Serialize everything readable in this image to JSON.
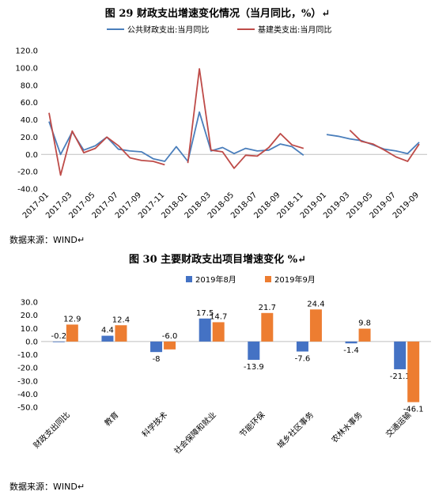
{
  "chart1": {
    "title": "图 29  财政支出增速变化情况（当月同比，%）↵",
    "source": "数据来源：WIND↵",
    "chart_data": {
      "type": "line",
      "legend_position": "top",
      "ylim": [
        -40,
        120
      ],
      "yticks": [
        "-40.0",
        "-20.0",
        "0.0",
        "20.0",
        "40.0",
        "60.0",
        "80.0",
        "100.0",
        "120.0"
      ],
      "x": [
        "2017-01",
        "2017-02",
        "2017-03",
        "2017-04",
        "2017-05",
        "2017-06",
        "2017-07",
        "2017-08",
        "2017-09",
        "2017-10",
        "2017-11",
        "2017-12",
        "2018-01",
        "2018-02",
        "2018-03",
        "2018-04",
        "2018-05",
        "2018-06",
        "2018-07",
        "2018-08",
        "2018-09",
        "2018-10",
        "2018-11",
        "2018-12",
        "2019-01",
        "2019-02",
        "2019-03",
        "2019-04",
        "2019-05",
        "2019-06",
        "2019-07",
        "2019-08",
        "2019-09"
      ],
      "xtick_labels": [
        "2017-01",
        "2017-03",
        "2017-05",
        "2017-07",
        "2017-09",
        "2017-11",
        "2018-01",
        "2018-03",
        "2018-05",
        "2018-07",
        "2018-09",
        "2018-11",
        "2019-01",
        "2019-03",
        "2019-05",
        "2019-07",
        "2019-09"
      ],
      "series": [
        {
          "name": "公共财政支出:当月同比",
          "color": "#4a7ebb",
          "values": [
            38,
            0,
            26,
            5,
            10,
            20,
            6,
            4,
            3,
            -5,
            -8,
            9,
            -8,
            49,
            4,
            8,
            1,
            7,
            4,
            5,
            12,
            9,
            -1,
            null,
            23,
            21,
            18,
            16,
            11,
            6,
            4,
            1,
            14
          ]
        },
        {
          "name": "基建类支出:当月同比",
          "color": "#be4b48",
          "values": [
            48,
            -24,
            27,
            2,
            7,
            20,
            10,
            -4,
            -7,
            -8,
            -12,
            null,
            -10,
            99,
            5,
            3,
            -16,
            -1,
            -2,
            8,
            24,
            11,
            7,
            null,
            null,
            null,
            28,
            15,
            12,
            5,
            -3,
            -8,
            12
          ]
        }
      ]
    }
  },
  "chart2": {
    "title": "图 30   主要财政支出项目增速变化 %↵",
    "source": "数据来源：WIND↵",
    "chart_data": {
      "type": "bar",
      "legend_position": "top",
      "ylim": [
        -50,
        30
      ],
      "yticks": [
        "-50.0",
        "-40.0",
        "-30.0",
        "-20.0",
        "-10.0",
        "0.0",
        "10.0",
        "20.0",
        "30.0"
      ],
      "categories": [
        "财政支出同比",
        "教育",
        "科学技术",
        "社会保障和就业",
        "节能环保",
        "城乡社区事务",
        "农林水事务",
        "交通运输"
      ],
      "series": [
        {
          "name": "2019年8月",
          "color": "#4472c4",
          "values": [
            -0.2,
            4.4,
            -8,
            17.5,
            -13.9,
            -7.6,
            -1.4,
            -21.1
          ],
          "labels": [
            "-0.2",
            "4.4",
            "-8",
            "17.5",
            "-13.9",
            "-7.6",
            "-1.4",
            "-21.1"
          ]
        },
        {
          "name": "2019年9月",
          "color": "#ed7d31",
          "values": [
            12.9,
            12.4,
            -6.0,
            14.7,
            21.7,
            24.4,
            9.8,
            -46.1
          ],
          "labels": [
            "12.9",
            "12.4",
            "-6.0",
            "14.7",
            "21.7",
            "24.4",
            "9.8",
            "-46.1"
          ]
        }
      ]
    }
  }
}
